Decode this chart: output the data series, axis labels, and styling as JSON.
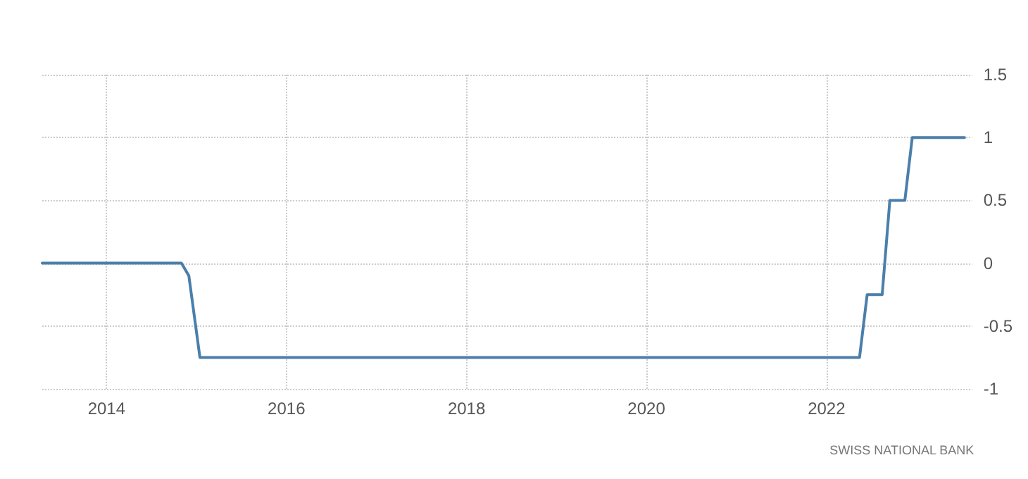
{
  "chart_data": {
    "type": "line",
    "x": [
      "2013-04-15",
      "2014-11-01",
      "2014-12-01",
      "2015-01-15",
      "2022-05-15",
      "2022-06-15",
      "2022-08-15",
      "2022-09-15",
      "2022-11-15",
      "2022-12-15",
      "2023-07-15"
    ],
    "series": [
      {
        "color": "#4a7fab",
        "values": [
          0,
          0,
          -0.1,
          -0.75,
          -0.75,
          -0.25,
          -0.25,
          0.5,
          0.5,
          1,
          1
        ]
      }
    ],
    "xlim": [
      "2013-04-15",
      "2023-08-15"
    ],
    "xticks": [
      {
        "value": "2014",
        "label": "2014"
      },
      {
        "value": "2016",
        "label": "2016"
      },
      {
        "value": "2018",
        "label": "2018"
      },
      {
        "value": "2020",
        "label": "2020"
      },
      {
        "value": "2022",
        "label": "2022"
      }
    ],
    "ylim": [
      -1,
      1.5
    ],
    "yticks": [
      -1,
      -0.5,
      0,
      0.5,
      1,
      1.5
    ],
    "grid": true,
    "marker": "none",
    "line_style": "solid",
    "annotations": [
      "SWISS NATIONAL BANK"
    ]
  }
}
